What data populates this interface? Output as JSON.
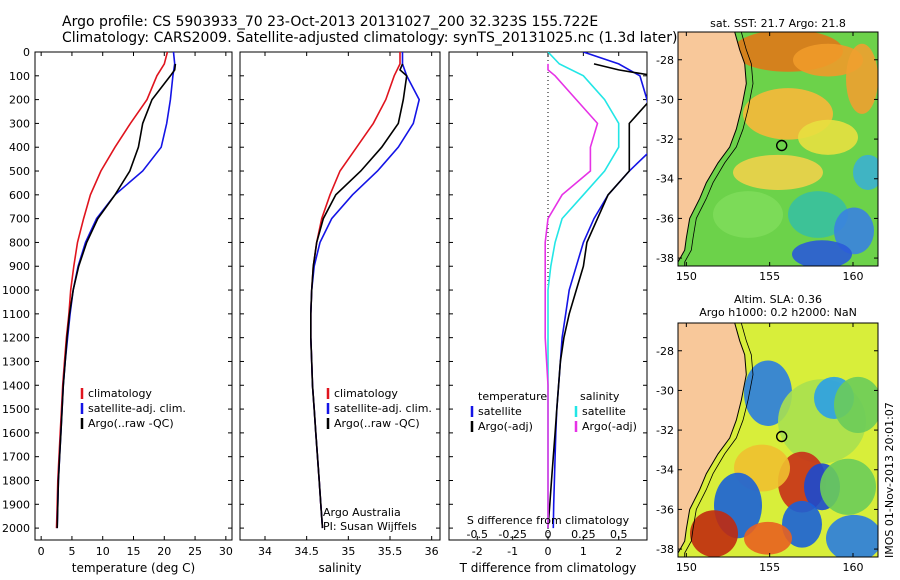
{
  "header": {
    "line1": "Argo profile: CS 5903933_70 23-Oct-2013 20131027_200 32.323S 155.722E",
    "line2": "Climatology: CARS2009. Satellite-adjusted climatology: synTS_20131025.nc (1.3d later)"
  },
  "colors": {
    "red": "#e0141e",
    "blue": "#1414e6",
    "black": "#000000",
    "cyan": "#22e6e6",
    "magenta": "#e632e6",
    "land": "#f8c89a"
  },
  "depth_axis": {
    "ticks": [
      "0",
      "100",
      "200",
      "300",
      "400",
      "500",
      "600",
      "700",
      "800",
      "900",
      "1000",
      "1100",
      "1200",
      "1300",
      "1400",
      "1500",
      "1600",
      "1700",
      "1800",
      "1900",
      "2000"
    ]
  },
  "temperature_panel": {
    "xlabel": "temperature (deg C)",
    "xticks": [
      "0",
      "5",
      "10",
      "15",
      "20",
      "25",
      "30"
    ],
    "legend": [
      "climatology",
      "satellite-adj. clim.",
      "Argo(..raw -QC)"
    ]
  },
  "salinity_panel": {
    "xlabel": "salinity",
    "xticks": [
      "34",
      "34.5",
      "35",
      "35.5",
      "36"
    ],
    "legend": [
      "climatology",
      "satellite-adj. clim.",
      "Argo(..raw -QC)"
    ],
    "credit1": "Argo Australia",
    "credit2": "PI: Susan Wijffels"
  },
  "difference_panel": {
    "xlabel": "T difference from climatology",
    "xticks": [
      "-2",
      "-1",
      "0",
      "1",
      "2"
    ],
    "top_label": "S difference from climatology",
    "s_ticks": [
      "-0.5",
      "-0.25",
      "0",
      "0.25",
      "0.5"
    ],
    "legend_title_t": "temperature",
    "legend_title_s": "salinity",
    "legend_t": [
      "satellite",
      "Argo(-adj)"
    ],
    "legend_s": [
      "satellite",
      "Argo(-adj)"
    ]
  },
  "map_sst": {
    "title": "sat. SST: 21.7 Argo: 21.8",
    "yticks": [
      "-28",
      "-30",
      "-32",
      "-34",
      "-36",
      "-38"
    ],
    "xticks": [
      "150",
      "155",
      "160"
    ]
  },
  "map_sla": {
    "title1": "Altim. SLA: 0.36",
    "title2": "Argo h1000: 0.2 h2000: NaN",
    "yticks": [
      "-28",
      "-30",
      "-32",
      "-34",
      "-36",
      "-38"
    ],
    "xticks": [
      "150",
      "155",
      "160"
    ]
  },
  "stamp": "IMOS 01-Nov-2013 20:01:07",
  "chart_data": [
    {
      "type": "line",
      "xlabel": "temperature (deg C)",
      "ylabel": "",
      "xlim": [
        -1,
        31
      ],
      "ylim": [
        2050,
        0
      ],
      "series": [
        {
          "name": "climatology",
          "color": "red",
          "x": [
            20.5,
            20.0,
            18.8,
            17.2,
            14.5,
            12.0,
            9.7,
            8.0,
            6.9,
            5.9,
            5.3,
            4.8,
            4.5,
            4.1,
            3.8,
            3.5,
            3.3,
            3.1,
            2.9,
            2.7,
            2.6,
            2.5
          ],
          "y": [
            0,
            50,
            100,
            200,
            300,
            400,
            500,
            600,
            700,
            800,
            900,
            1000,
            1100,
            1200,
            1300,
            1400,
            1500,
            1600,
            1700,
            1800,
            1900,
            2000
          ]
        },
        {
          "name": "satellite-adj. clim.",
          "color": "blue",
          "x": [
            21.5,
            21.7,
            21.4,
            21.0,
            20.4,
            19.5,
            16.5,
            12.0,
            9.0,
            7.2,
            6.0,
            5.2,
            4.7,
            4.3,
            3.9,
            3.6,
            3.4,
            3.2,
            3.0,
            2.8,
            2.7,
            2.6
          ],
          "y": [
            0,
            50,
            100,
            200,
            300,
            400,
            500,
            600,
            700,
            800,
            900,
            1000,
            1100,
            1200,
            1300,
            1400,
            1500,
            1600,
            1700,
            1800,
            1900,
            2000
          ]
        },
        {
          "name": "Argo(..raw -QC)",
          "color": "black",
          "x": [
            21.8,
            21.7,
            21.0,
            18.0,
            16.5,
            15.8,
            14.4,
            12.0,
            9.2,
            7.4,
            6.1,
            5.2,
            4.6,
            4.2,
            3.9,
            3.6,
            3.4,
            3.2,
            3.0,
            2.8,
            2.7,
            2.6
          ],
          "y": [
            50,
            75,
            100,
            200,
            300,
            400,
            500,
            600,
            700,
            800,
            900,
            1000,
            1100,
            1200,
            1300,
            1400,
            1500,
            1600,
            1700,
            1800,
            1900,
            2000
          ]
        }
      ]
    },
    {
      "type": "line",
      "xlabel": "salinity",
      "ylabel": "",
      "xlim": [
        33.7,
        36.1
      ],
      "ylim": [
        2050,
        0
      ],
      "series": [
        {
          "name": "climatology",
          "color": "red",
          "x": [
            35.62,
            35.62,
            35.55,
            35.45,
            35.3,
            35.1,
            34.9,
            34.78,
            34.68,
            34.62,
            34.58,
            34.56,
            34.55,
            34.55,
            34.56,
            34.57,
            34.59,
            34.61,
            34.63,
            34.65,
            34.67,
            34.69
          ],
          "y": [
            0,
            50,
            100,
            200,
            300,
            400,
            500,
            600,
            700,
            800,
            900,
            1000,
            1100,
            1200,
            1300,
            1400,
            1500,
            1600,
            1700,
            1800,
            1900,
            2000
          ]
        },
        {
          "name": "satellite-adj. clim.",
          "color": "blue",
          "x": [
            35.65,
            35.65,
            35.7,
            35.85,
            35.78,
            35.6,
            35.35,
            35.05,
            34.8,
            34.66,
            34.59,
            34.56,
            34.55,
            34.55,
            34.56,
            34.57,
            34.59,
            34.61,
            34.63,
            34.65,
            34.67,
            34.69
          ],
          "y": [
            0,
            50,
            100,
            200,
            300,
            400,
            500,
            600,
            700,
            800,
            900,
            1000,
            1100,
            1200,
            1300,
            1400,
            1500,
            1600,
            1700,
            1800,
            1900,
            2000
          ]
        },
        {
          "name": "Argo(..raw -QC)",
          "color": "black",
          "x": [
            35.65,
            35.62,
            35.7,
            35.66,
            35.6,
            35.4,
            35.15,
            34.85,
            34.7,
            34.62,
            34.58,
            34.56,
            34.55,
            34.55,
            34.56,
            34.57,
            34.59,
            34.61,
            34.63,
            34.65,
            34.67,
            34.69
          ],
          "y": [
            50,
            75,
            100,
            200,
            300,
            400,
            500,
            600,
            700,
            800,
            900,
            1000,
            1100,
            1200,
            1300,
            1400,
            1500,
            1600,
            1700,
            1800,
            1900,
            2000
          ]
        }
      ]
    },
    {
      "type": "line",
      "xlabel": "T difference from climatology",
      "ylabel": "",
      "xlim": [
        -2.8,
        2.8
      ],
      "ylim": [
        2050,
        0
      ],
      "series": [
        {
          "name": "satellite",
          "group": "temperature",
          "color": "blue",
          "x": [
            1.0,
            2.0,
            2.6,
            2.8,
            2.9,
            3.0,
            2.3,
            1.7,
            1.3,
            1.0,
            0.8,
            0.6,
            0.5,
            0.4,
            0.35,
            0.3,
            0.25,
            0.22,
            0.2,
            0.18,
            0.16,
            0.15
          ],
          "y": [
            0,
            50,
            100,
            200,
            300,
            400,
            500,
            600,
            700,
            800,
            900,
            1000,
            1100,
            1200,
            1300,
            1400,
            1500,
            1600,
            1700,
            1800,
            1900,
            2000
          ]
        },
        {
          "name": "Argo(-adj)",
          "group": "temperature",
          "color": "black",
          "x": [
            1.3,
            2.0,
            3.0,
            2.9,
            2.3,
            2.3,
            2.3,
            1.7,
            1.4,
            1.1,
            1.0,
            0.8,
            0.6,
            0.45,
            0.35,
            0.3,
            0.25,
            0.2,
            0.15,
            0.1,
            0.05,
            0.0
          ],
          "y": [
            50,
            75,
            100,
            200,
            300,
            400,
            500,
            600,
            700,
            800,
            900,
            1000,
            1100,
            1200,
            1300,
            1400,
            1500,
            1600,
            1700,
            1800,
            1900,
            2000
          ]
        },
        {
          "name": "satellite",
          "group": "salinity",
          "color": "cyan",
          "s": [
            0.0,
            0.08,
            0.25,
            0.4,
            0.5,
            0.5,
            0.4,
            0.25,
            0.1,
            0.05,
            0.02,
            0.0,
            0.0,
            0.0,
            0.0,
            0.0,
            0.0,
            0.0,
            0.0,
            0.0,
            0.0,
            0.0
          ],
          "y": [
            0,
            50,
            100,
            200,
            300,
            400,
            500,
            600,
            700,
            800,
            900,
            1000,
            1100,
            1200,
            1300,
            1400,
            1500,
            1600,
            1700,
            1800,
            1900,
            2000
          ]
        },
        {
          "name": "Argo(-adj)",
          "group": "salinity",
          "color": "magenta",
          "s": [
            0.0,
            0.0,
            0.05,
            0.2,
            0.35,
            0.3,
            0.3,
            0.1,
            0.0,
            -0.02,
            -0.02,
            -0.02,
            -0.02,
            -0.02,
            -0.01,
            0.0,
            0.0,
            0.0,
            0.0,
            0.0,
            0.0,
            0.0
          ],
          "y": [
            50,
            75,
            100,
            200,
            300,
            400,
            500,
            600,
            700,
            800,
            900,
            1000,
            1100,
            1200,
            1300,
            1400,
            1500,
            1600,
            1700,
            1800,
            1900,
            2000
          ]
        }
      ]
    },
    {
      "type": "heatmap",
      "title": "sat. SST: 21.7 Argo: 21.8",
      "xlim": [
        149.5,
        161.5
      ],
      "ylim": [
        -38.4,
        -26.6
      ],
      "argo_position": {
        "lon": 155.722,
        "lat": -32.323
      }
    },
    {
      "type": "heatmap",
      "title": "Altim. SLA: 0.36",
      "xlim": [
        149.5,
        161.5
      ],
      "ylim": [
        -38.4,
        -26.6
      ],
      "argo_position": {
        "lon": 155.722,
        "lat": -32.323
      }
    }
  ]
}
